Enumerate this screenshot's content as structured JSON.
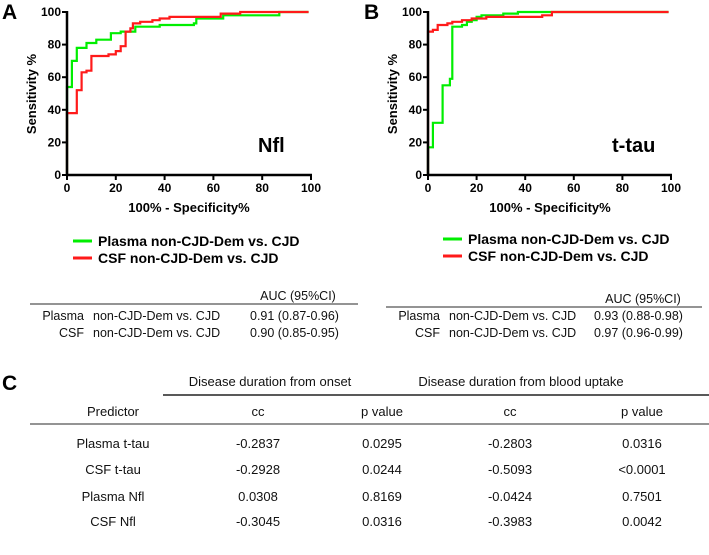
{
  "colors": {
    "plasma": "#00ee00",
    "csf": "#ff1a1a",
    "axis": "#000000"
  },
  "chart_data": [
    {
      "type": "line",
      "panel": "A",
      "annotation": "Nfl",
      "xlabel": "100% - Specificity%",
      "ylabel": "Sensitivity %",
      "xlim": [
        0,
        100
      ],
      "ylim": [
        0,
        100
      ],
      "xticks": [
        "0",
        "20",
        "40",
        "60",
        "80",
        "100"
      ],
      "yticks": [
        "0",
        "20",
        "40",
        "60",
        "80",
        "100"
      ],
      "grid": false,
      "legend": [
        "Plasma non-CJD-Dem vs. CJD",
        "CSF non-CJD-Dem vs. CJD"
      ],
      "series": [
        {
          "name": "Plasma non-CJD-Dem vs. CJD",
          "color": "#00ee00",
          "points": [
            [
              0,
              0
            ],
            [
              0,
              54
            ],
            [
              2,
              54
            ],
            [
              2,
              70
            ],
            [
              4,
              70
            ],
            [
              4,
              78
            ],
            [
              8,
              78
            ],
            [
              8,
              81
            ],
            [
              12,
              81
            ],
            [
              12,
              83
            ],
            [
              18,
              83
            ],
            [
              18,
              87
            ],
            [
              22,
              87
            ],
            [
              22,
              88
            ],
            [
              28,
              88
            ],
            [
              28,
              91
            ],
            [
              38,
              91
            ],
            [
              38,
              92
            ],
            [
              52,
              92
            ],
            [
              52,
              93
            ],
            [
              53,
              93
            ],
            [
              53,
              96
            ],
            [
              64,
              96
            ],
            [
              64,
              98
            ],
            [
              87,
              98
            ],
            [
              87,
              100
            ],
            [
              99,
              100
            ]
          ]
        },
        {
          "name": "CSF non-CJD-Dem vs. CJD",
          "color": "#ff1a1a",
          "points": [
            [
              0,
              0
            ],
            [
              0,
              38
            ],
            [
              4,
              38
            ],
            [
              4,
              52
            ],
            [
              6,
              52
            ],
            [
              6,
              63
            ],
            [
              8,
              63
            ],
            [
              8,
              64
            ],
            [
              10,
              64
            ],
            [
              10,
              73
            ],
            [
              17,
              73
            ],
            [
              17,
              74
            ],
            [
              20,
              74
            ],
            [
              20,
              76
            ],
            [
              22,
              76
            ],
            [
              22,
              79
            ],
            [
              24,
              79
            ],
            [
              24,
              88
            ],
            [
              26,
              88
            ],
            [
              26,
              90
            ],
            [
              27,
              90
            ],
            [
              27,
              93
            ],
            [
              30,
              93
            ],
            [
              30,
              94
            ],
            [
              35,
              94
            ],
            [
              35,
              95
            ],
            [
              38,
              95
            ],
            [
              38,
              96
            ],
            [
              42,
              96
            ],
            [
              42,
              97
            ],
            [
              63,
              97
            ],
            [
              63,
              99
            ],
            [
              71,
              99
            ],
            [
              71,
              100
            ],
            [
              99,
              100
            ]
          ]
        }
      ],
      "auc_table": {
        "header": "AUC (95%CI)",
        "rows": [
          {
            "sample": "Plasma",
            "comparison": "non-CJD-Dem vs. CJD",
            "auc": "0.91 (0.87-0.96)"
          },
          {
            "sample": "CSF",
            "comparison": "non-CJD-Dem vs. CJD",
            "auc": "0.90 (0.85-0.95)"
          }
        ]
      }
    },
    {
      "type": "line",
      "panel": "B",
      "annotation": "t-tau",
      "xlabel": "100% - Specificity%",
      "ylabel": "Sensitivity %",
      "xlim": [
        0,
        100
      ],
      "ylim": [
        0,
        100
      ],
      "xticks": [
        "0",
        "20",
        "40",
        "60",
        "80",
        "100"
      ],
      "yticks": [
        "0",
        "20",
        "40",
        "60",
        "80",
        "100"
      ],
      "grid": false,
      "legend": [
        "Plasma non-CJD-Dem vs. CJD",
        "CSF non-CJD-Dem vs. CJD"
      ],
      "series": [
        {
          "name": "Plasma non-CJD-Dem vs. CJD",
          "color": "#00ee00",
          "points": [
            [
              0,
              0
            ],
            [
              0,
              17
            ],
            [
              2,
              17
            ],
            [
              2,
              19
            ],
            [
              2,
              32
            ],
            [
              6,
              32
            ],
            [
              6,
              34
            ],
            [
              6,
              55
            ],
            [
              9,
              55
            ],
            [
              9,
              59
            ],
            [
              10,
              59
            ],
            [
              10,
              91
            ],
            [
              14,
              91
            ],
            [
              14,
              92
            ],
            [
              16,
              92
            ],
            [
              16,
              94
            ],
            [
              18,
              94
            ],
            [
              18,
              95
            ],
            [
              20,
              95
            ],
            [
              20,
              97
            ],
            [
              22,
              97
            ],
            [
              22,
              98
            ],
            [
              31,
              98
            ],
            [
              31,
              99
            ],
            [
              37,
              99
            ],
            [
              37,
              100
            ],
            [
              99,
              100
            ]
          ]
        },
        {
          "name": "CSF non-CJD-Dem vs. CJD",
          "color": "#ff1a1a",
          "points": [
            [
              0,
              0
            ],
            [
              0,
              88
            ],
            [
              2,
              88
            ],
            [
              2,
              89
            ],
            [
              4,
              89
            ],
            [
              4,
              92
            ],
            [
              8,
              92
            ],
            [
              8,
              93
            ],
            [
              10,
              93
            ],
            [
              10,
              94
            ],
            [
              14,
              94
            ],
            [
              14,
              95
            ],
            [
              18,
              95
            ],
            [
              18,
              96
            ],
            [
              24,
              96
            ],
            [
              24,
              97
            ],
            [
              47,
              97
            ],
            [
              47,
              98
            ],
            [
              51,
              98
            ],
            [
              51,
              100
            ],
            [
              99,
              100
            ]
          ]
        }
      ],
      "auc_table": {
        "header": "AUC (95%CI)",
        "rows": [
          {
            "sample": "Plasma",
            "comparison": "non-CJD-Dem vs. CJD",
            "auc": "0.93 (0.88-0.98)"
          },
          {
            "sample": "CSF",
            "comparison": "non-CJD-Dem vs. CJD",
            "auc": "0.97 (0.96-0.99)"
          }
        ]
      }
    },
    {
      "type": "table",
      "panel": "C",
      "group_headers": [
        "Disease duration from onset",
        "Disease duration from blood uptake"
      ],
      "columns": [
        "Predictor",
        "cc",
        "p value",
        "cc",
        "p value"
      ],
      "rows": [
        [
          "Plasma t-tau",
          "-0.2837",
          "0.0295",
          "-0.2803",
          "0.0316"
        ],
        [
          "CSF t-tau",
          "-0.2928",
          "0.0244",
          "-0.5093",
          "<0.0001"
        ],
        [
          "Plasma Nfl",
          "0.0308",
          "0.8169",
          "-0.0424",
          "0.7501"
        ],
        [
          "CSF Nfl",
          "-0.3045",
          "0.0316",
          "-0.3983",
          "0.0042"
        ]
      ]
    }
  ]
}
